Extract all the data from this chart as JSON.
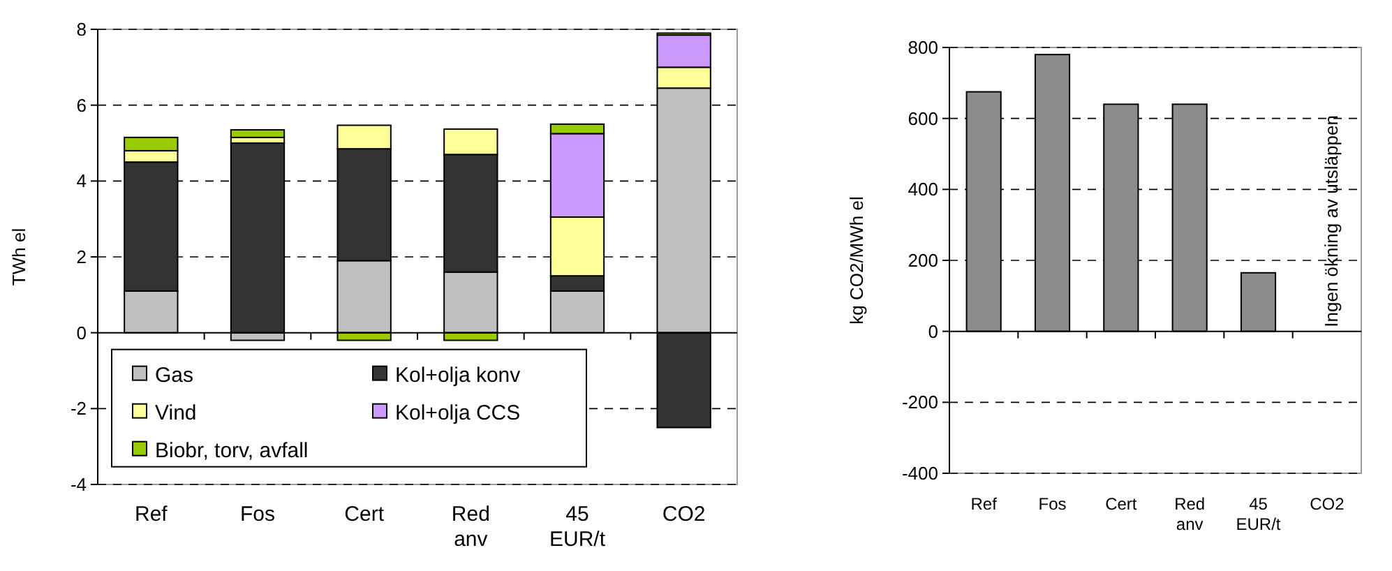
{
  "chart_data": [
    {
      "type": "bar",
      "stacked": true,
      "ylabel": "TWh el",
      "categories": [
        "Ref",
        "Fos",
        "Cert",
        "Red anv",
        "45 EUR/t",
        "CO2"
      ],
      "ylim": [
        -4,
        8
      ],
      "yticks": [
        -4,
        -2,
        0,
        2,
        4,
        6,
        8
      ],
      "grid": "y",
      "legend": "bottom left",
      "series": [
        {
          "name": "Gas",
          "color": "#c0c0c0",
          "values": [
            1.1,
            -0.2,
            1.9,
            1.6,
            1.1,
            6.45
          ]
        },
        {
          "name": "Kol+olja konv",
          "color": "#333333",
          "values": [
            3.4,
            5.0,
            2.95,
            3.1,
            0.4,
            -2.5
          ]
        },
        {
          "name": "Vind",
          "color": "#ffff99",
          "values": [
            0.3,
            0.15,
            0.62,
            0.67,
            1.55,
            0.55
          ]
        },
        {
          "name": "Kol+olja CCS",
          "color": "#cc99ff",
          "values": [
            0,
            0,
            0,
            0,
            2.2,
            0.85
          ]
        },
        {
          "name": "Biobr, torv, avfall",
          "color": "#99cc00",
          "values": [
            0.35,
            0.2,
            -0.2,
            -0.2,
            0.25,
            0.05
          ]
        }
      ]
    },
    {
      "type": "bar",
      "ylabel": "kg CO2/MWh el",
      "categories": [
        "Ref",
        "Fos",
        "Cert",
        "Red anv",
        "45 EUR/t",
        "CO2"
      ],
      "ylim": [
        -400,
        800
      ],
      "yticks": [
        -400,
        -200,
        0,
        200,
        400,
        600,
        800
      ],
      "grid": "y",
      "series": [
        {
          "color": "#8c8c8c",
          "values": [
            675,
            780,
            640,
            640,
            165,
            null
          ]
        }
      ],
      "annotations": [
        "Ingen ökning av utsläppen"
      ]
    }
  ]
}
